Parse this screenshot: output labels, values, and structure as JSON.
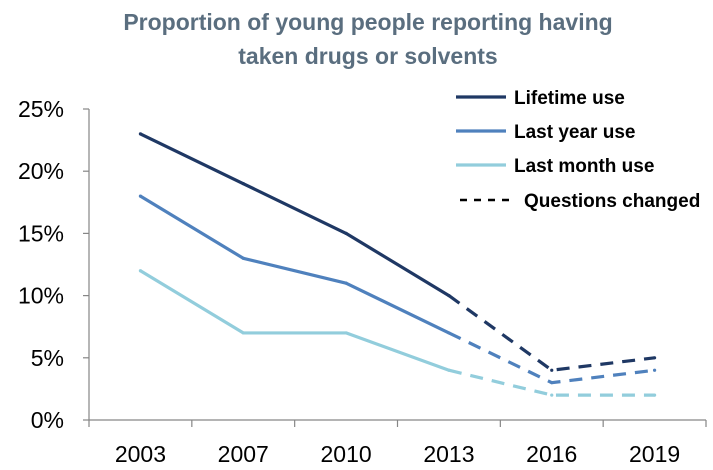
{
  "chart_data": {
    "type": "line",
    "title_lines": [
      "Proportion of young people reporting having",
      "taken drugs or solvents"
    ],
    "categories": [
      "2003",
      "2007",
      "2010",
      "2013",
      "2016",
      "2019"
    ],
    "x": [
      2003,
      2007,
      2010,
      2013,
      2016,
      2019
    ],
    "xlabel": "",
    "ylabel": "",
    "ylim": [
      0,
      25
    ],
    "y_ticks": [
      0,
      5,
      10,
      15,
      20,
      25
    ],
    "y_tick_labels": [
      "0%",
      "5%",
      "10%",
      "15%",
      "20%",
      "25%"
    ],
    "grid": false,
    "legend_position": "top-right",
    "series": [
      {
        "name": "Lifetime use",
        "color": "#1f3864",
        "values": [
          23,
          19,
          15,
          10,
          4,
          5
        ]
      },
      {
        "name": "Last year use",
        "color": "#4f81bd",
        "values": [
          18,
          13,
          11,
          7,
          3,
          4
        ]
      },
      {
        "name": "Last month use",
        "color": "#92cddc",
        "values": [
          12,
          7,
          7,
          4,
          2,
          2
        ]
      }
    ],
    "dashed_legend_label": "Questions changed",
    "dashed_legend_color": "#000000",
    "dashed_from_index": 3
  }
}
